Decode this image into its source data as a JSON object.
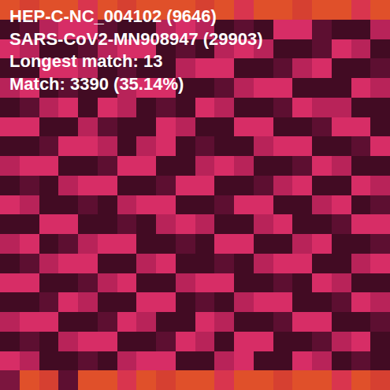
{
  "chart_data": {
    "type": "heatmap",
    "annotations": [
      "HEP-C-NC_004102 (9646)",
      "SARS-CoV2-MN908947 (29903)",
      "Longest match: 13",
      "Match: 3390 (35.14%)"
    ],
    "tick_labels": false,
    "zlim": [
      0,
      9
    ],
    "z": [
      [
        9,
        8,
        9,
        9,
        7,
        9,
        8,
        9,
        9,
        9,
        8,
        9,
        7,
        9,
        9,
        8,
        9,
        9,
        7,
        9
      ],
      [
        1,
        2,
        5,
        6,
        6,
        2,
        1,
        1,
        5,
        6,
        5,
        1,
        2,
        1,
        6,
        6,
        2,
        1,
        1,
        5
      ],
      [
        6,
        5,
        1,
        1,
        2,
        5,
        6,
        6,
        1,
        2,
        1,
        5,
        6,
        5,
        1,
        1,
        2,
        6,
        5,
        1
      ],
      [
        1,
        1,
        6,
        6,
        5,
        1,
        2,
        1,
        1,
        5,
        6,
        6,
        1,
        1,
        2,
        5,
        6,
        1,
        1,
        2
      ],
      [
        5,
        6,
        1,
        2,
        1,
        1,
        5,
        6,
        6,
        1,
        1,
        2,
        5,
        6,
        6,
        1,
        1,
        1,
        6,
        5
      ],
      [
        1,
        2,
        5,
        6,
        1,
        6,
        5,
        1,
        2,
        1,
        6,
        5,
        1,
        1,
        2,
        6,
        5,
        5,
        1,
        1
      ],
      [
        6,
        6,
        1,
        1,
        5,
        2,
        1,
        1,
        6,
        5,
        1,
        1,
        6,
        6,
        1,
        1,
        2,
        6,
        6,
        1
      ],
      [
        1,
        1,
        2,
        6,
        6,
        5,
        1,
        5,
        6,
        1,
        2,
        1,
        1,
        5,
        6,
        6,
        1,
        1,
        2,
        6
      ],
      [
        5,
        6,
        6,
        1,
        1,
        2,
        6,
        6,
        1,
        1,
        5,
        6,
        5,
        1,
        1,
        2,
        6,
        5,
        1,
        1
      ],
      [
        1,
        2,
        1,
        5,
        6,
        6,
        1,
        1,
        2,
        6,
        6,
        1,
        1,
        2,
        5,
        6,
        1,
        1,
        6,
        5
      ],
      [
        6,
        5,
        1,
        1,
        2,
        1,
        5,
        6,
        6,
        1,
        1,
        2,
        6,
        6,
        1,
        1,
        5,
        6,
        1,
        2
      ],
      [
        1,
        1,
        6,
        6,
        1,
        1,
        2,
        1,
        5,
        6,
        5,
        1,
        1,
        5,
        6,
        1,
        1,
        2,
        6,
        6
      ],
      [
        5,
        6,
        1,
        2,
        5,
        6,
        6,
        1,
        1,
        2,
        1,
        6,
        6,
        1,
        1,
        5,
        6,
        1,
        1,
        2
      ],
      [
        1,
        2,
        5,
        6,
        6,
        1,
        1,
        5,
        6,
        1,
        1,
        2,
        1,
        5,
        6,
        6,
        1,
        1,
        5,
        6
      ],
      [
        6,
        6,
        1,
        1,
        2,
        5,
        6,
        1,
        1,
        5,
        6,
        6,
        1,
        1,
        2,
        1,
        6,
        5,
        1,
        1
      ],
      [
        1,
        1,
        2,
        6,
        5,
        1,
        1,
        6,
        6,
        1,
        2,
        1,
        5,
        6,
        6,
        1,
        1,
        2,
        6,
        5
      ],
      [
        5,
        6,
        6,
        1,
        1,
        2,
        6,
        5,
        1,
        1,
        6,
        5,
        1,
        1,
        2,
        6,
        6,
        1,
        1,
        2
      ],
      [
        1,
        2,
        1,
        5,
        6,
        6,
        1,
        1,
        2,
        6,
        5,
        1,
        6,
        6,
        1,
        1,
        2,
        5,
        6,
        1
      ],
      [
        6,
        5,
        1,
        1,
        2,
        1,
        5,
        6,
        6,
        1,
        1,
        5,
        6,
        1,
        1,
        6,
        5,
        1,
        2,
        1
      ],
      [
        3,
        9,
        8,
        2,
        9,
        9,
        7,
        9,
        8,
        9,
        9,
        7,
        9,
        9,
        8,
        9,
        9,
        7,
        9,
        8
      ]
    ]
  }
}
